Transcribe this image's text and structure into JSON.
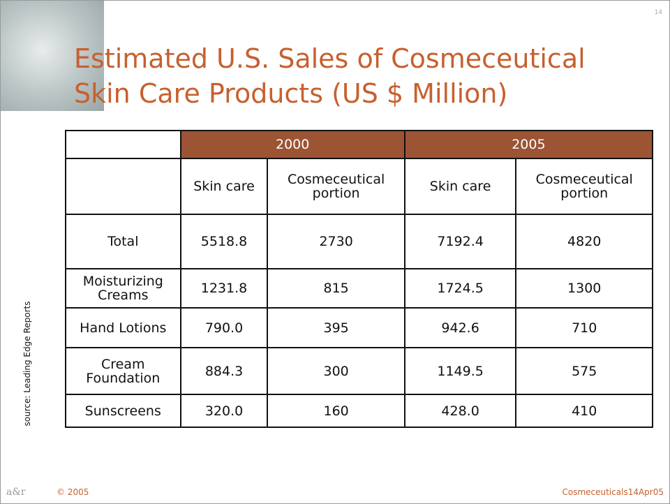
{
  "slide_number": "14",
  "title": [
    "Estimated U.S. Sales of Cosmeceutical",
    "Skin Care Products (US $ Million)"
  ],
  "table": {
    "groups": [
      "2000",
      "2005"
    ],
    "subheaders": [
      "Skin care",
      "Cosmeceutical portion",
      "Skin care",
      "Cosmeceutical portion"
    ],
    "rows": [
      [
        "Total",
        "5518.8",
        "2730",
        "7192.4",
        "4820"
      ],
      [
        "Moisturizing Creams",
        "1231.8",
        "815",
        "1724.5",
        "1300"
      ],
      [
        "Hand Lotions",
        "790.0",
        "395",
        "942.6",
        "710"
      ],
      [
        "Cream Foundation",
        "884.3",
        "300",
        "1149.5",
        "575"
      ],
      [
        "Sunscreens",
        "320.0",
        "160",
        "428.0",
        "410"
      ]
    ]
  },
  "source": "source: Leading Edge Reports",
  "footer": {
    "copyright": "© 2005",
    "file": "Cosmeceuticals14Apr05"
  }
}
